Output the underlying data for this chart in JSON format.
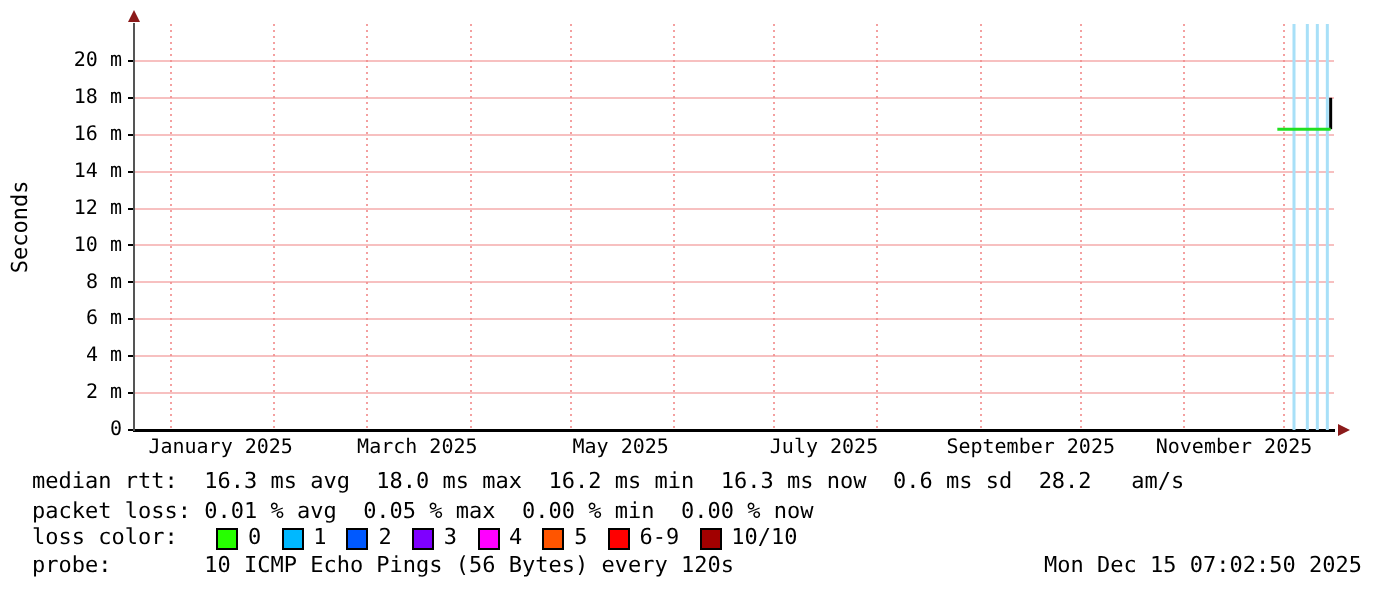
{
  "chart_data": {
    "type": "line",
    "ylabel": "Seconds",
    "xlim": [
      "2024-12-21",
      "2025-12-16"
    ],
    "xticks": [
      {
        "value": "2025-01-01",
        "label": null
      },
      {
        "value": "2025-01-16",
        "label": "January 2025"
      },
      {
        "value": "2025-02-01",
        "label": null
      },
      {
        "value": "2025-03-01",
        "label": null
      },
      {
        "value": "2025-03-16",
        "label": "March 2025"
      },
      {
        "value": "2025-04-01",
        "label": null
      },
      {
        "value": "2025-05-01",
        "label": null
      },
      {
        "value": "2025-05-16",
        "label": "May 2025"
      },
      {
        "value": "2025-06-01",
        "label": null
      },
      {
        "value": "2025-07-01",
        "label": null
      },
      {
        "value": "2025-07-16",
        "label": "July 2025"
      },
      {
        "value": "2025-08-01",
        "label": null
      },
      {
        "value": "2025-09-01",
        "label": null
      },
      {
        "value": "2025-09-16",
        "label": "September 2025"
      },
      {
        "value": "2025-10-01",
        "label": null
      },
      {
        "value": "2025-11-01",
        "label": null
      },
      {
        "value": "2025-11-16",
        "label": "November 2025"
      },
      {
        "value": "2025-12-01",
        "label": null
      }
    ],
    "ylim": [
      0,
      22
    ],
    "yticks": [
      0,
      {
        "value": 2,
        "label": "2 m"
      },
      {
        "value": 4,
        "label": "4 m"
      },
      {
        "value": 6,
        "label": "6 m"
      },
      {
        "value": 8,
        "label": "8 m"
      },
      {
        "value": 10,
        "label": "10 m"
      },
      {
        "value": 12,
        "label": "12 m"
      },
      {
        "value": 14,
        "label": "14 m"
      },
      {
        "value": 16,
        "label": "16 m"
      },
      {
        "value": 18,
        "label": "18 m"
      },
      {
        "value": 20,
        "label": "20 m"
      }
    ],
    "series": [
      {
        "color": "#20e020",
        "x": [
          "2025-11-29",
          "2025-12-05",
          "2025-12-10",
          "2025-12-15"
        ],
        "values": [
          16.3,
          16.3,
          16.3,
          16.3
        ]
      },
      {
        "color": "#000000",
        "x": [
          "2025-12-15",
          "2025-12-15"
        ],
        "values": [
          16.3,
          18.0
        ]
      }
    ],
    "ref_lines": [
      {
        "axis": "x",
        "value": "2025-12-04",
        "color": "#a8e0f8"
      },
      {
        "axis": "x",
        "value": "2025-12-08",
        "color": "#a8e0f8"
      },
      {
        "axis": "x",
        "value": "2025-12-11",
        "color": "#a8e0f8"
      },
      {
        "axis": "x",
        "value": "2025-12-14",
        "color": "#a8e0f8"
      }
    ],
    "grid": true,
    "legend": false,
    "marker": "none",
    "line_style": "solid",
    "annotations": [
      "median rtt:  16.3 ms avg  18.0 ms max  16.2 ms min  16.3 ms now  0.6 ms sd  28.2   am/s",
      "packet loss: 0.01 % avg  0.05 % max  0.00 % min  0.00 % now",
      "loss color:",
      "0",
      "1",
      "2",
      "3",
      "4",
      "5",
      "6-9",
      "10/10",
      "probe:       10 ICMP Echo Pings (56 Bytes) every 120s",
      "Mon Dec 15 07:02:50 2025"
    ]
  }
}
